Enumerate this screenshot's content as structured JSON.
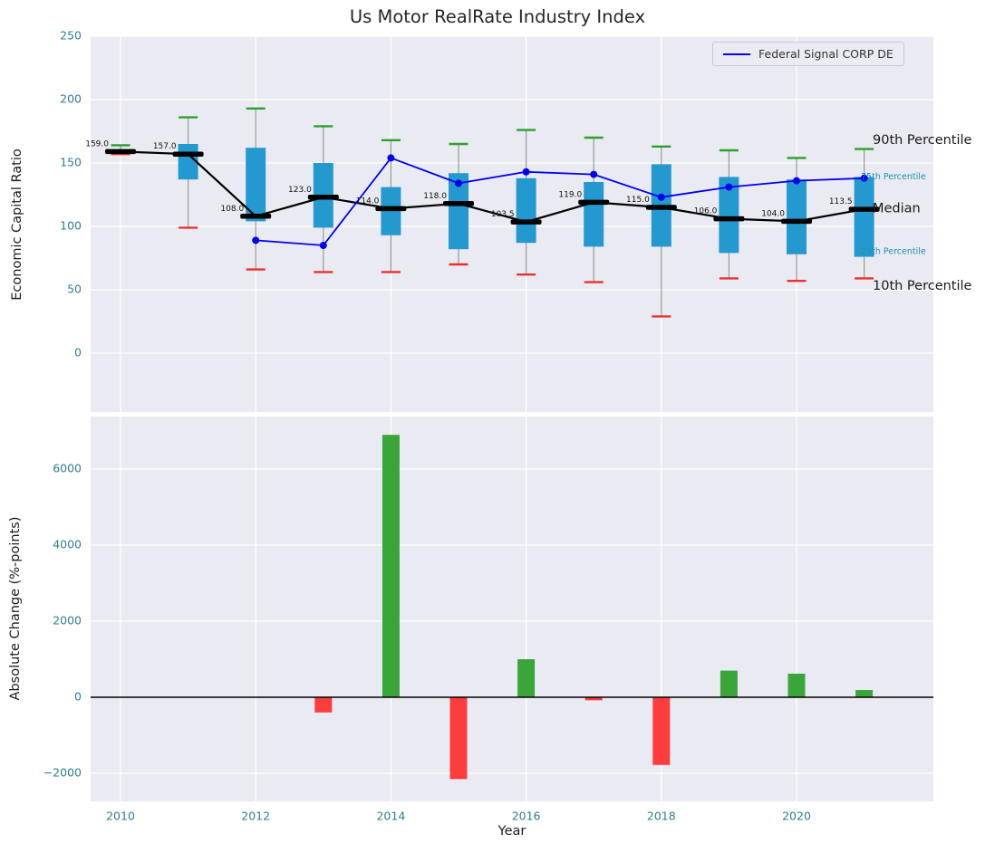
{
  "title": "Us Motor RealRate Industry Index",
  "top_panel": {
    "ylabel": "Economic Capital Ratio",
    "yticks": [
      0,
      50,
      100,
      150,
      200,
      250
    ],
    "legend": {
      "label": "Federal Signal CORP DE"
    },
    "annotations": [
      {
        "text": "90th Percentile",
        "value": 168,
        "style": "major"
      },
      {
        "text": "75th Percentile",
        "value": 139,
        "style": "minor"
      },
      {
        "text": "Median",
        "value": 114,
        "style": "major"
      },
      {
        "text": "25th Percentile",
        "value": 80,
        "style": "minor"
      },
      {
        "text": "10th Percentile",
        "value": 53,
        "style": "major"
      }
    ]
  },
  "bottom_panel": {
    "ylabel": "Absolute Change (%-points)",
    "xlabel": "Year",
    "yticks": [
      -2000,
      0,
      2000,
      4000,
      6000
    ],
    "xticks": [
      2010,
      2012,
      2014,
      2016,
      2018,
      2020
    ]
  },
  "colors": {
    "axes_background": "#eaeaf2",
    "grid": "#ffffff",
    "box_fill": "#2499cf",
    "cap_top": "#2ca02c",
    "cap_bottom": "#e8312f",
    "whisker": "#9a9a9a",
    "median": "#000000",
    "company_line": "#0000ee",
    "bar_positive": "#3aa63a",
    "bar_negative": "#fb3d3d",
    "tick_label": "#2e7e8e",
    "annotation_teal": "#1a93a8",
    "annotation_black": "#1a1a1a",
    "zero_line": "#000000",
    "median_label": "#111111"
  },
  "chart_data": [
    {
      "type": "boxplot",
      "panel": "top",
      "title": "Us Motor RealRate Industry Index",
      "ylabel": "Economic Capital Ratio",
      "ylim": [
        -46,
        250
      ],
      "grid": true,
      "boxes": [
        {
          "year": 2010,
          "p10": 157,
          "q1": 158,
          "median": 159.0,
          "q3": 160.5,
          "p90": 164,
          "label": "159.0"
        },
        {
          "year": 2011,
          "p10": 99,
          "q1": 137,
          "median": 157.0,
          "q3": 165,
          "p90": 186,
          "label": "157.0"
        },
        {
          "year": 2012,
          "p10": 66,
          "q1": 104,
          "median": 108.0,
          "q3": 162,
          "p90": 193,
          "label": "108.0"
        },
        {
          "year": 2013,
          "p10": 64,
          "q1": 99,
          "median": 123.0,
          "q3": 150,
          "p90": 179,
          "label": "123.0"
        },
        {
          "year": 2014,
          "p10": 64,
          "q1": 93,
          "median": 114.0,
          "q3": 131,
          "p90": 168,
          "label": "114.0"
        },
        {
          "year": 2015,
          "p10": 70,
          "q1": 82,
          "median": 118.0,
          "q3": 142,
          "p90": 165,
          "label": "118.0"
        },
        {
          "year": 2016,
          "p10": 62,
          "q1": 87,
          "median": 103.5,
          "q3": 138,
          "p90": 176,
          "label": "103.5"
        },
        {
          "year": 2017,
          "p10": 56,
          "q1": 84,
          "median": 119.0,
          "q3": 135,
          "p90": 170,
          "label": "119.0"
        },
        {
          "year": 2018,
          "p10": 29,
          "q1": 84,
          "median": 115.0,
          "q3": 149,
          "p90": 163,
          "label": "115.0"
        },
        {
          "year": 2019,
          "p10": 59,
          "q1": 79,
          "median": 106.0,
          "q3": 139,
          "p90": 160,
          "label": "106.0"
        },
        {
          "year": 2020,
          "p10": 57,
          "q1": 78,
          "median": 104.0,
          "q3": 137,
          "p90": 154,
          "label": "104.0"
        },
        {
          "year": 2021,
          "p10": 59,
          "q1": 76,
          "median": 113.5,
          "q3": 139,
          "p90": 161,
          "label": "113.5"
        }
      ],
      "series": [
        {
          "name": "Federal Signal CORP DE",
          "x": [
            2012,
            2013,
            2014,
            2015,
            2016,
            2017,
            2018,
            2019,
            2020,
            2021
          ],
          "values": [
            89,
            85,
            154,
            134,
            143,
            141,
            123,
            131,
            136,
            138
          ]
        }
      ]
    },
    {
      "type": "bar",
      "panel": "bottom",
      "ylabel": "Absolute Change (%-points)",
      "xlabel": "Year",
      "ylim": [
        -2700,
        7380
      ],
      "grid": true,
      "categories": [
        2013,
        2014,
        2015,
        2016,
        2017,
        2018,
        2019,
        2020,
        2021
      ],
      "values": [
        -400,
        6900,
        -2150,
        1000,
        -80,
        -1780,
        700,
        620,
        190
      ]
    }
  ]
}
